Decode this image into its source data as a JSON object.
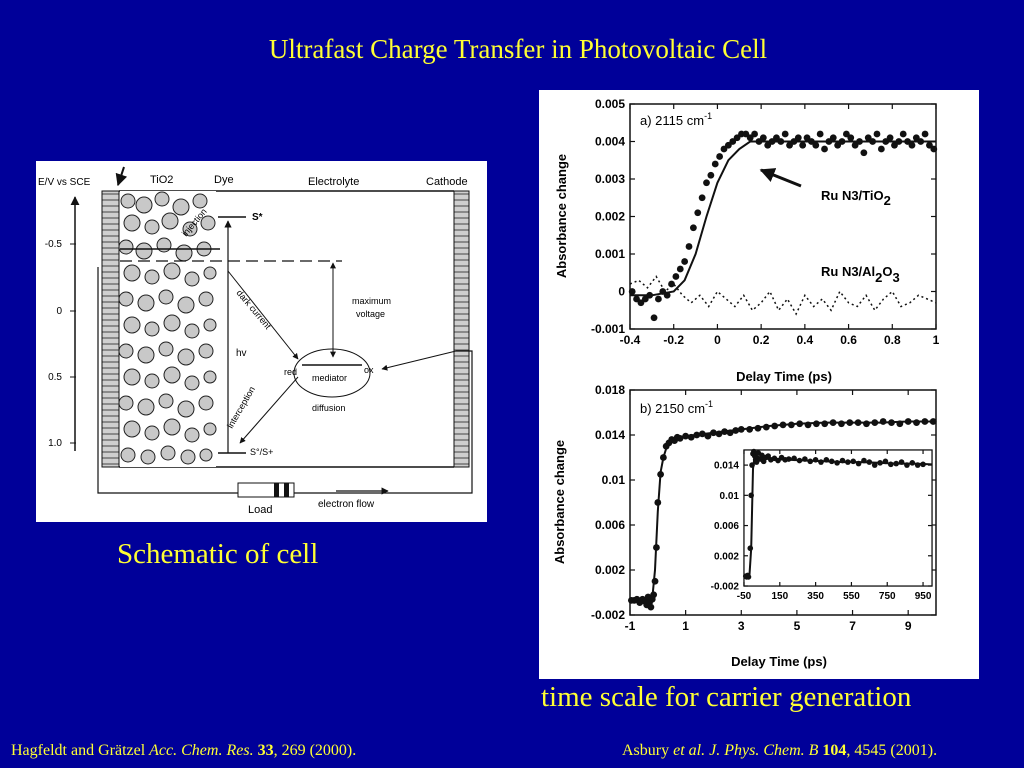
{
  "slide": {
    "title": "Ultrafast Charge Transfer in Photovoltaic Cell",
    "schematic_caption": "Schematic of cell",
    "plots_caption": "time scale for carrier generation"
  },
  "references": {
    "left": {
      "authors": "Hagfeldt and Grätzel ",
      "journal": "Acc. Chem. Res.",
      "volume": "33",
      "rest": ", 269 (2000)."
    },
    "right": {
      "author": "Asbury ",
      "etal": "et al.",
      "journal": "J. Phys. Chem. B",
      "volume": "104",
      "rest": ", 4545 (2001)."
    }
  },
  "schematic": {
    "energy_axis_label": "E/V vs SCE",
    "energy_ticks": [
      "-0.5",
      "0",
      "0.5",
      "1.0"
    ],
    "regions": {
      "tio2": "TiO2",
      "dye": "Dye",
      "electrolyte": "Electrolyte",
      "cathode": "Cathode"
    },
    "labels": {
      "injection": "injection",
      "s_star": "S*",
      "dark_current": "dark current",
      "maximum_voltage_1": "maximum",
      "maximum_voltage_2": "voltage",
      "hv": "hv",
      "red": "red",
      "mediator": "mediator",
      "ox": "ox",
      "diffusion": "diffusion",
      "interception": "interception",
      "s_ground": "S°/S+",
      "load": "Load",
      "electron_flow": "electron flow"
    }
  },
  "chart_data": [
    {
      "type": "line",
      "panel_label": "a) 2115 cm",
      "panel_label_sup": "-1",
      "xlabel": "Delay Time (ps)",
      "ylabel": "Absorbance change",
      "xlim": [
        -0.4,
        1.0
      ],
      "ylim": [
        -0.001,
        0.005
      ],
      "x_ticks": [
        "-0.4",
        "-0.2",
        "0",
        "0.2",
        "0.4",
        "0.6",
        "0.8",
        "1"
      ],
      "y_ticks": [
        "-0.001",
        "0",
        "0.001",
        "0.002",
        "0.003",
        "0.004",
        "0.005"
      ],
      "arrow_label": {
        "main": "Ru N3/TiO",
        "sub": "2"
      },
      "annotation": {
        "main1": "Ru N3/Al",
        "sub1": "2",
        "main2": "O",
        "sub2": "3"
      },
      "series": [
        {
          "name": "Ru N3/TiO2",
          "style": "points",
          "x": [
            -0.39,
            -0.37,
            -0.35,
            -0.33,
            -0.31,
            -0.29,
            -0.27,
            -0.25,
            -0.23,
            -0.21,
            -0.19,
            -0.17,
            -0.15,
            -0.13,
            -0.11,
            -0.09,
            -0.07,
            -0.05,
            -0.03,
            -0.01,
            0.01,
            0.03,
            0.05,
            0.07,
            0.09,
            0.11,
            0.13,
            0.15,
            0.17,
            0.19,
            0.21,
            0.23,
            0.25,
            0.27,
            0.29,
            0.31,
            0.33,
            0.35,
            0.37,
            0.39,
            0.41,
            0.43,
            0.45,
            0.47,
            0.49,
            0.51,
            0.53,
            0.55,
            0.57,
            0.59,
            0.61,
            0.63,
            0.65,
            0.67,
            0.69,
            0.71,
            0.73,
            0.75,
            0.77,
            0.79,
            0.81,
            0.83,
            0.85,
            0.87,
            0.89,
            0.91,
            0.93,
            0.95,
            0.97,
            0.99
          ],
          "y": [
            0.0,
            -0.0002,
            -0.0003,
            -0.0002,
            -0.0001,
            -0.0007,
            -0.0002,
            0.0,
            -0.0001,
            0.0002,
            0.0004,
            0.0006,
            0.0008,
            0.0012,
            0.0017,
            0.0021,
            0.0025,
            0.0029,
            0.0031,
            0.0034,
            0.0036,
            0.0038,
            0.0039,
            0.004,
            0.0041,
            0.0042,
            0.0042,
            0.0041,
            0.0042,
            0.004,
            0.0041,
            0.0039,
            0.004,
            0.0041,
            0.004,
            0.0042,
            0.0039,
            0.004,
            0.0041,
            0.0039,
            0.0041,
            0.004,
            0.0039,
            0.0042,
            0.0038,
            0.004,
            0.0041,
            0.0039,
            0.004,
            0.0042,
            0.0041,
            0.0039,
            0.004,
            0.0037,
            0.0041,
            0.004,
            0.0042,
            0.0038,
            0.004,
            0.0041,
            0.0039,
            0.004,
            0.0042,
            0.004,
            0.0039,
            0.0041,
            0.004,
            0.0042,
            0.0039,
            0.0038
          ]
        },
        {
          "name": "fit",
          "style": "solid",
          "x": [
            -0.4,
            -0.3,
            -0.2,
            -0.15,
            -0.1,
            -0.05,
            0.0,
            0.05,
            0.1,
            0.15,
            0.2,
            0.3,
            0.5,
            0.7,
            1.0
          ],
          "y": [
            -0.0001,
            -0.0001,
            0.0,
            0.0003,
            0.001,
            0.002,
            0.0029,
            0.0035,
            0.0038,
            0.004,
            0.004,
            0.004,
            0.004,
            0.004,
            0.004
          ]
        },
        {
          "name": "Ru N3/Al2O3",
          "style": "dotted",
          "x": [
            -0.4,
            -0.36,
            -0.32,
            -0.28,
            -0.24,
            -0.2,
            -0.16,
            -0.12,
            -0.08,
            -0.04,
            0.0,
            0.04,
            0.08,
            0.12,
            0.16,
            0.2,
            0.24,
            0.28,
            0.32,
            0.36,
            0.4,
            0.44,
            0.48,
            0.52,
            0.56,
            0.6,
            0.64,
            0.68,
            0.72,
            0.76,
            0.8,
            0.84,
            0.88,
            0.92,
            0.96,
            1.0
          ],
          "y": [
            0.0002,
            0.0003,
            0.0001,
            0.0004,
            0.0,
            0.0002,
            -0.0001,
            -0.0003,
            -0.0001,
            -0.0004,
            0.0,
            -0.0002,
            -0.0004,
            -0.0001,
            -0.0005,
            -0.0003,
            0.0,
            -0.0005,
            -0.0002,
            -0.0006,
            -0.0001,
            -0.0004,
            -0.0002,
            -0.0005,
            0.0,
            -0.0003,
            -0.0004,
            -0.0001,
            -0.0005,
            -0.0002,
            0.0,
            -0.0004,
            -0.0003,
            -0.0001,
            -0.0002,
            -0.0003
          ]
        }
      ]
    },
    {
      "type": "line",
      "panel_label": "b) 2150 cm",
      "panel_label_sup": "-1",
      "xlabel": "Delay Time (ps)",
      "ylabel": "Absorbance change",
      "xlim": [
        -1,
        10
      ],
      "ylim": [
        -0.002,
        0.018
      ],
      "x_ticks": [
        "-1",
        "1",
        "3",
        "5",
        "7",
        "9"
      ],
      "y_ticks": [
        "-0.002",
        "0.002",
        "0.006",
        "0.01",
        "0.014",
        "0.018"
      ],
      "series": [
        {
          "name": "Ru N3/TiO2",
          "style": "points",
          "x": [
            -0.95,
            -0.85,
            -0.75,
            -0.65,
            -0.55,
            -0.45,
            -0.4,
            -0.35,
            -0.3,
            -0.25,
            -0.2,
            -0.15,
            -0.1,
            -0.05,
            0.0,
            0.1,
            0.2,
            0.3,
            0.4,
            0.5,
            0.6,
            0.7,
            0.8,
            1.0,
            1.2,
            1.4,
            1.6,
            1.8,
            2.0,
            2.2,
            2.4,
            2.6,
            2.8,
            3.0,
            3.3,
            3.6,
            3.9,
            4.2,
            4.5,
            4.8,
            5.1,
            5.4,
            5.7,
            6.0,
            6.3,
            6.6,
            6.9,
            7.2,
            7.5,
            7.8,
            8.1,
            8.4,
            8.7,
            9.0,
            9.3,
            9.6,
            9.9
          ],
          "y": [
            -0.0007,
            -0.0007,
            -0.0006,
            -0.0009,
            -0.0006,
            -0.0008,
            -0.0011,
            -0.0004,
            -0.0009,
            -0.0013,
            -0.0006,
            -0.0002,
            0.001,
            0.004,
            0.008,
            0.0105,
            0.012,
            0.013,
            0.0133,
            0.0136,
            0.0135,
            0.0138,
            0.0137,
            0.0139,
            0.0138,
            0.014,
            0.0141,
            0.0139,
            0.0142,
            0.0141,
            0.0143,
            0.0142,
            0.0144,
            0.0145,
            0.0145,
            0.0146,
            0.0147,
            0.0148,
            0.0149,
            0.0149,
            0.015,
            0.0149,
            0.015,
            0.015,
            0.0151,
            0.015,
            0.0151,
            0.0151,
            0.015,
            0.0151,
            0.0152,
            0.0151,
            0.015,
            0.0152,
            0.0151,
            0.0152,
            0.0152
          ]
        },
        {
          "name": "fit",
          "style": "solid",
          "x": [
            -1.0,
            -0.3,
            -0.2,
            -0.1,
            0.0,
            0.1,
            0.2,
            0.3,
            0.4,
            0.6,
            0.8,
            1.0,
            2.0,
            3.0,
            4.0,
            5.0,
            6.0,
            7.0,
            8.0,
            9.0,
            10.0
          ],
          "y": [
            -0.0008,
            -0.0008,
            -0.0005,
            0.002,
            0.0072,
            0.0107,
            0.012,
            0.0128,
            0.0133,
            0.0137,
            0.0138,
            0.0139,
            0.0142,
            0.0145,
            0.0148,
            0.015,
            0.0151,
            0.0151,
            0.0151,
            0.0152,
            0.0152
          ]
        }
      ],
      "inset": {
        "type": "line",
        "xlim": [
          -50,
          1000
        ],
        "ylim": [
          -0.002,
          0.016
        ],
        "x_ticks": [
          "-50",
          "150",
          "350",
          "550",
          "750",
          "950"
        ],
        "y_ticks": [
          "-0.002",
          "0.002",
          "0.006",
          "0.01",
          "0.014"
        ],
        "series": [
          {
            "name": "Ru N3/TiO2",
            "style": "points",
            "x": [
              -40,
              -35,
              -30,
              -25,
              -15,
              -10,
              -5,
              0,
              5,
              10,
              15,
              20,
              25,
              30,
              40,
              50,
              60,
              70,
              85,
              100,
              120,
              140,
              160,
              180,
              200,
              230,
              260,
              290,
              320,
              350,
              380,
              410,
              440,
              470,
              500,
              530,
              560,
              590,
              620,
              650,
              680,
              710,
              740,
              770,
              800,
              830,
              860,
              890,
              920,
              950
            ],
            "y": [
              -0.0007,
              -0.0008,
              -0.0006,
              -0.0008,
              0.003,
              0.01,
              0.014,
              0.0155,
              0.0158,
              0.0152,
              0.0147,
              0.0144,
              0.0149,
              0.0156,
              0.0148,
              0.0153,
              0.0145,
              0.015,
              0.0152,
              0.0147,
              0.0149,
              0.0146,
              0.015,
              0.0147,
              0.0148,
              0.0149,
              0.0146,
              0.0148,
              0.0145,
              0.0147,
              0.0144,
              0.0147,
              0.0145,
              0.0143,
              0.0146,
              0.0144,
              0.0145,
              0.0142,
              0.0146,
              0.0144,
              0.014,
              0.0143,
              0.0145,
              0.0141,
              0.0142,
              0.0144,
              0.014,
              0.0143,
              0.014,
              0.0141
            ]
          },
          {
            "name": "fit",
            "style": "solid",
            "x": [
              -50,
              -20,
              -10,
              0,
              10,
              20,
              40,
              100,
              200,
              300,
              400,
              500,
              600,
              700,
              800,
              900,
              1000
            ],
            "y": [
              -0.0007,
              -0.0007,
              0.003,
              0.0135,
              0.0153,
              0.015,
              0.0149,
              0.0148,
              0.0147,
              0.0146,
              0.0145,
              0.0144,
              0.0144,
              0.0143,
              0.0142,
              0.0142,
              0.0141
            ]
          }
        ]
      }
    }
  ]
}
